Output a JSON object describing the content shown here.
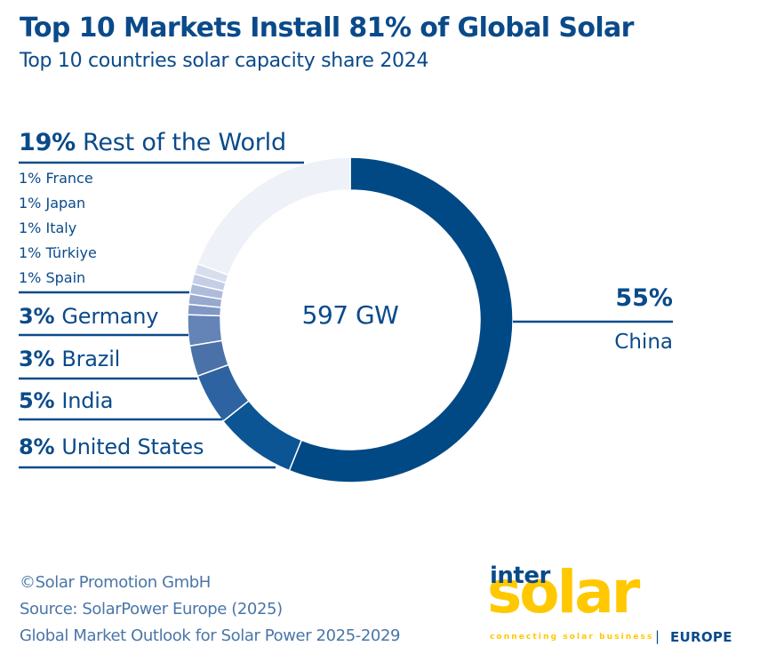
{
  "header": {
    "title": "Top 10 Markets Install 81% of Global Solar",
    "subtitle": "Top 10 countries solar capacity share 2024"
  },
  "chart_data": {
    "type": "pie",
    "variant": "donut",
    "title": "Top 10 Markets Install 81% of Global Solar",
    "subtitle": "Top 10 countries solar capacity share 2024",
    "center_label": "597 GW",
    "unit": "%",
    "direction": "clockwise-from-top",
    "slices": [
      {
        "name": "China",
        "value": 55,
        "label": "55%",
        "color": "#004985"
      },
      {
        "name": "United States",
        "value": 8,
        "label": "8%",
        "color": "#0b5594"
      },
      {
        "name": "India",
        "value": 5,
        "label": "5%",
        "color": "#2d63a0"
      },
      {
        "name": "Brazil",
        "value": 3,
        "label": "3%",
        "color": "#4a72a8"
      },
      {
        "name": "Germany",
        "value": 3,
        "label": "3%",
        "color": "#6483b6"
      },
      {
        "name": "Spain",
        "value": 1,
        "label": "1%",
        "color": "#8197c4"
      },
      {
        "name": "Türkiye",
        "value": 1,
        "label": "1%",
        "color": "#97a9cf"
      },
      {
        "name": "Italy",
        "value": 1,
        "label": "1%",
        "color": "#aebbda"
      },
      {
        "name": "Japan",
        "value": 1,
        "label": "1%",
        "color": "#c4cee5"
      },
      {
        "name": "France",
        "value": 1,
        "label": "1%",
        "color": "#d7deee"
      },
      {
        "name": "Rest of the World",
        "value": 19,
        "label": "19%",
        "color": "#eef1f8"
      }
    ]
  },
  "labels": {
    "row": {
      "pct": "19%",
      "name": "Rest of the World"
    },
    "small": [
      "1% France",
      "1% Japan",
      "1% Italy",
      "1% Türkiye",
      "1% Spain"
    ],
    "germany": {
      "pct": "3%",
      "name": "Germany"
    },
    "brazil": {
      "pct": "3%",
      "name": "Brazil"
    },
    "india": {
      "pct": "5%",
      "name": "India"
    },
    "us": {
      "pct": "8%",
      "name": "United States"
    },
    "china": {
      "pct": "55%",
      "name": "China"
    }
  },
  "footer": {
    "copyright": "©Solar Promotion GmbH",
    "source": "Source: SolarPower Europe (2025)",
    "report": "Global Market Outlook for Solar Power 2025-2029"
  },
  "logo": {
    "inter": "inter",
    "solar": "solar",
    "tagline": "connecting solar business",
    "separator": "|",
    "region": "EUROPE"
  }
}
